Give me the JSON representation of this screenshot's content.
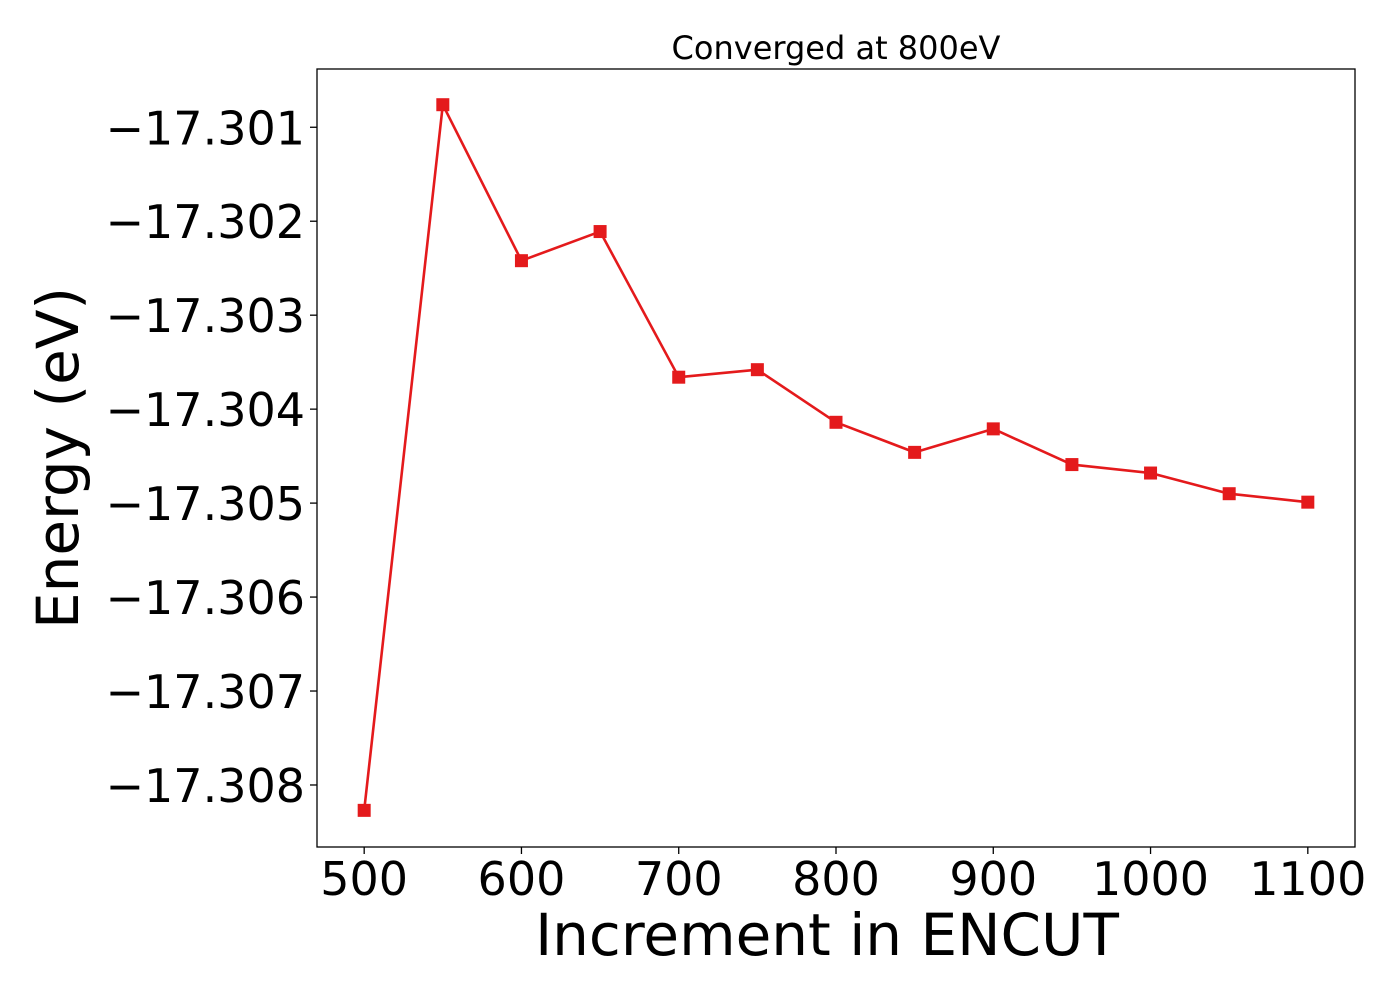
{
  "chart_data": {
    "type": "line",
    "title": "Converged at 800eV",
    "xlabel": "Increment in ENCUT",
    "ylabel": "Energy (eV)",
    "x": [
      500,
      550,
      600,
      650,
      700,
      750,
      800,
      850,
      900,
      950,
      1000,
      1050,
      1100
    ],
    "series": [
      {
        "values": [
          -17.30827,
          -17.30076,
          -17.30242,
          -17.30211,
          -17.30366,
          -17.30358,
          -17.30414,
          -17.30446,
          -17.30421,
          -17.30459,
          -17.30468,
          -17.3049,
          -17.30499
        ],
        "color": "#e41a1c",
        "marker": "square"
      }
    ],
    "xlim": [
      470,
      1130
    ],
    "ylim": [
      -17.30866,
      -17.30038
    ],
    "xticks": [
      500,
      600,
      700,
      800,
      900,
      1000,
      1100
    ],
    "xtick_labels": [
      "500",
      "600",
      "700",
      "800",
      "900",
      "1000",
      "1100"
    ],
    "yticks": [
      -17.301,
      -17.302,
      -17.303,
      -17.304,
      -17.305,
      -17.306,
      -17.307,
      -17.308
    ],
    "ytick_labels": [
      "−17.301",
      "−17.302",
      "−17.303",
      "−17.304",
      "−17.305",
      "−17.306",
      "−17.307",
      "−17.308"
    ],
    "grid": false,
    "legend": "none"
  }
}
